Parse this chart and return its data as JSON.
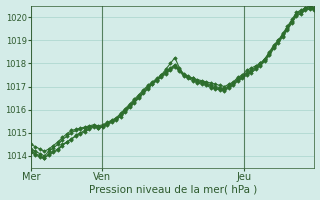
{
  "bg_color": "#d4ece8",
  "grid_color": "#a8d4cc",
  "line_color": "#2d6e2d",
  "marker_color": "#2d6e2d",
  "xlabel": "Pression niveau de la mer( hPa )",
  "xlabel_color": "#2d5a2d",
  "tick_color": "#2d5a2d",
  "spine_color": "#2d5a2d",
  "ylim": [
    1013.5,
    1020.5
  ],
  "yticks": [
    1014,
    1015,
    1016,
    1017,
    1018,
    1019,
    1020
  ],
  "day_labels": [
    "Mer",
    "Ven",
    "Jeu"
  ],
  "day_positions": [
    0,
    48,
    144
  ],
  "total_hours": 192,
  "series": [
    [
      1014.2,
      1014.1,
      1014.0,
      1013.9,
      1014.1,
      1014.2,
      1014.3,
      1014.5,
      1014.6,
      1014.7,
      1014.9,
      1015.0,
      1015.1,
      1015.2,
      1015.3,
      1015.2,
      1015.3,
      1015.4,
      1015.5,
      1015.6,
      1015.7,
      1015.9,
      1016.1,
      1016.3,
      1016.5,
      1016.7,
      1016.9,
      1017.1,
      1017.3,
      1017.5,
      1017.75,
      1018.0,
      1018.25,
      1017.8,
      1017.5,
      1017.4,
      1017.35,
      1017.3,
      1017.25,
      1017.2,
      1017.15,
      1017.1,
      1017.05,
      1017.0,
      1017.1,
      1017.2,
      1017.4,
      1017.5,
      1017.7,
      1017.8,
      1017.9,
      1018.0,
      1018.2,
      1018.5,
      1018.8,
      1019.0,
      1019.3,
      1019.6,
      1019.9,
      1020.2,
      1020.3,
      1020.4,
      1020.5,
      1020.4
    ],
    [
      1014.3,
      1014.2,
      1014.1,
      1014.0,
      1014.2,
      1014.35,
      1014.5,
      1014.7,
      1014.85,
      1015.0,
      1015.1,
      1015.15,
      1015.2,
      1015.25,
      1015.3,
      1015.25,
      1015.3,
      1015.4,
      1015.5,
      1015.6,
      1015.8,
      1016.0,
      1016.2,
      1016.4,
      1016.6,
      1016.8,
      1017.0,
      1017.15,
      1017.3,
      1017.45,
      1017.6,
      1017.75,
      1017.9,
      1017.7,
      1017.5,
      1017.4,
      1017.3,
      1017.2,
      1017.15,
      1017.1,
      1017.0,
      1016.95,
      1016.9,
      1016.85,
      1017.0,
      1017.1,
      1017.3,
      1017.4,
      1017.55,
      1017.65,
      1017.8,
      1017.95,
      1018.15,
      1018.4,
      1018.7,
      1018.95,
      1019.2,
      1019.5,
      1019.8,
      1020.1,
      1020.2,
      1020.35,
      1020.4,
      1020.35
    ],
    [
      1014.5,
      1014.4,
      1014.3,
      1014.2,
      1014.3,
      1014.45,
      1014.6,
      1014.8,
      1014.95,
      1015.1,
      1015.15,
      1015.2,
      1015.25,
      1015.3,
      1015.35,
      1015.3,
      1015.35,
      1015.45,
      1015.55,
      1015.65,
      1015.85,
      1016.05,
      1016.25,
      1016.45,
      1016.65,
      1016.85,
      1017.05,
      1017.2,
      1017.35,
      1017.5,
      1017.65,
      1017.8,
      1017.95,
      1017.75,
      1017.55,
      1017.45,
      1017.35,
      1017.25,
      1017.2,
      1017.15,
      1017.05,
      1017.0,
      1016.95,
      1016.9,
      1017.05,
      1017.15,
      1017.35,
      1017.45,
      1017.6,
      1017.7,
      1017.85,
      1018.0,
      1018.2,
      1018.45,
      1018.75,
      1019.0,
      1019.25,
      1019.55,
      1019.85,
      1020.15,
      1020.25,
      1020.4,
      1020.45,
      1020.4
    ],
    [
      1014.15,
      1014.05,
      1013.95,
      1013.9,
      1014.05,
      1014.15,
      1014.25,
      1014.45,
      1014.6,
      1014.75,
      1014.85,
      1014.95,
      1015.05,
      1015.15,
      1015.25,
      1015.2,
      1015.25,
      1015.35,
      1015.45,
      1015.55,
      1015.75,
      1015.95,
      1016.15,
      1016.35,
      1016.55,
      1016.75,
      1016.95,
      1017.1,
      1017.25,
      1017.4,
      1017.55,
      1017.7,
      1017.85,
      1017.65,
      1017.45,
      1017.35,
      1017.25,
      1017.15,
      1017.1,
      1017.05,
      1016.95,
      1016.9,
      1016.85,
      1016.8,
      1016.95,
      1017.05,
      1017.25,
      1017.35,
      1017.5,
      1017.6,
      1017.75,
      1017.9,
      1018.1,
      1018.35,
      1018.65,
      1018.9,
      1019.15,
      1019.45,
      1019.75,
      1020.05,
      1020.15,
      1020.3,
      1020.35,
      1020.3
    ]
  ]
}
